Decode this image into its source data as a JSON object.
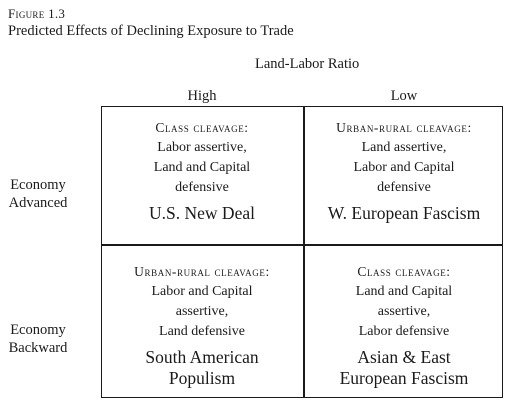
{
  "figure": {
    "label": "Figure 1.3",
    "caption": "Predicted Effects of Declining Exposure to Trade"
  },
  "columns": {
    "group_title": "Land-Labor Ratio",
    "high": "High",
    "low": "Low"
  },
  "rows": {
    "advanced": [
      "Economy",
      "Advanced"
    ],
    "backward": [
      "Economy",
      "Backward"
    ]
  },
  "cells": {
    "advanced_high": {
      "cleavage": "Class cleavage:",
      "lines": [
        "Labor assertive,",
        "Land and Capital",
        "defensive"
      ],
      "outcome": [
        "U.S. New Deal"
      ]
    },
    "advanced_low": {
      "cleavage": "Urban-rural cleavage:",
      "lines": [
        "Land assertive,",
        "Labor and Capital",
        "defensive"
      ],
      "outcome": [
        "W. European Fascism"
      ]
    },
    "backward_high": {
      "cleavage": "Urban-rural cleavage:",
      "lines": [
        "Labor and Capital",
        "assertive,",
        "Land defensive"
      ],
      "outcome": [
        "South American",
        "Populism"
      ]
    },
    "backward_low": {
      "cleavage": "Class cleavage:",
      "lines": [
        "Land and Capital",
        "assertive,",
        "Labor defensive"
      ],
      "outcome": [
        "Asian & East",
        "European Fascism"
      ]
    }
  }
}
